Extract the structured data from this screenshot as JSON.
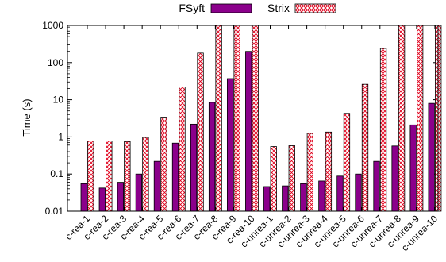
{
  "chart_data": {
    "type": "bar",
    "ylabel": "Time (s)",
    "yscale": "log",
    "ylim": [
      0.01,
      1000
    ],
    "yticks": [
      "0.01",
      "0.1",
      "1",
      "10",
      "100",
      "1000"
    ],
    "legend_position": "top",
    "grid": false,
    "categories": [
      "c-rea-1",
      "c-rea-2",
      "c-rea-3",
      "c-rea-4",
      "c-rea-5",
      "c-rea-6",
      "c-rea-7",
      "c-rea-8",
      "c-rea-9",
      "c-rea-10",
      "c-unrea-1",
      "c-unrea-2",
      "c-unrea-3",
      "c-unrea-4",
      "c-unrea-5",
      "c-unrea-6",
      "c-unrea-7",
      "c-unrea-8",
      "c-unrea-9",
      "c-unrea-10"
    ],
    "series": [
      {
        "name": "FSyft",
        "color": "#8b008b",
        "pattern": "solid",
        "values": [
          0.055,
          0.042,
          0.06,
          0.1,
          0.22,
          0.68,
          2.2,
          8.5,
          37,
          200,
          0.046,
          0.048,
          0.055,
          0.065,
          0.088,
          0.1,
          0.22,
          0.57,
          2.1,
          8
        ]
      },
      {
        "name": "Strix",
        "color": "#e0001b",
        "pattern": "crosshatch",
        "values": [
          0.78,
          0.78,
          0.75,
          0.97,
          3.4,
          22,
          180,
          1000,
          1000,
          1000,
          0.55,
          0.58,
          1.25,
          1.35,
          4.3,
          26,
          240,
          1000,
          1000,
          1000
        ]
      }
    ]
  }
}
